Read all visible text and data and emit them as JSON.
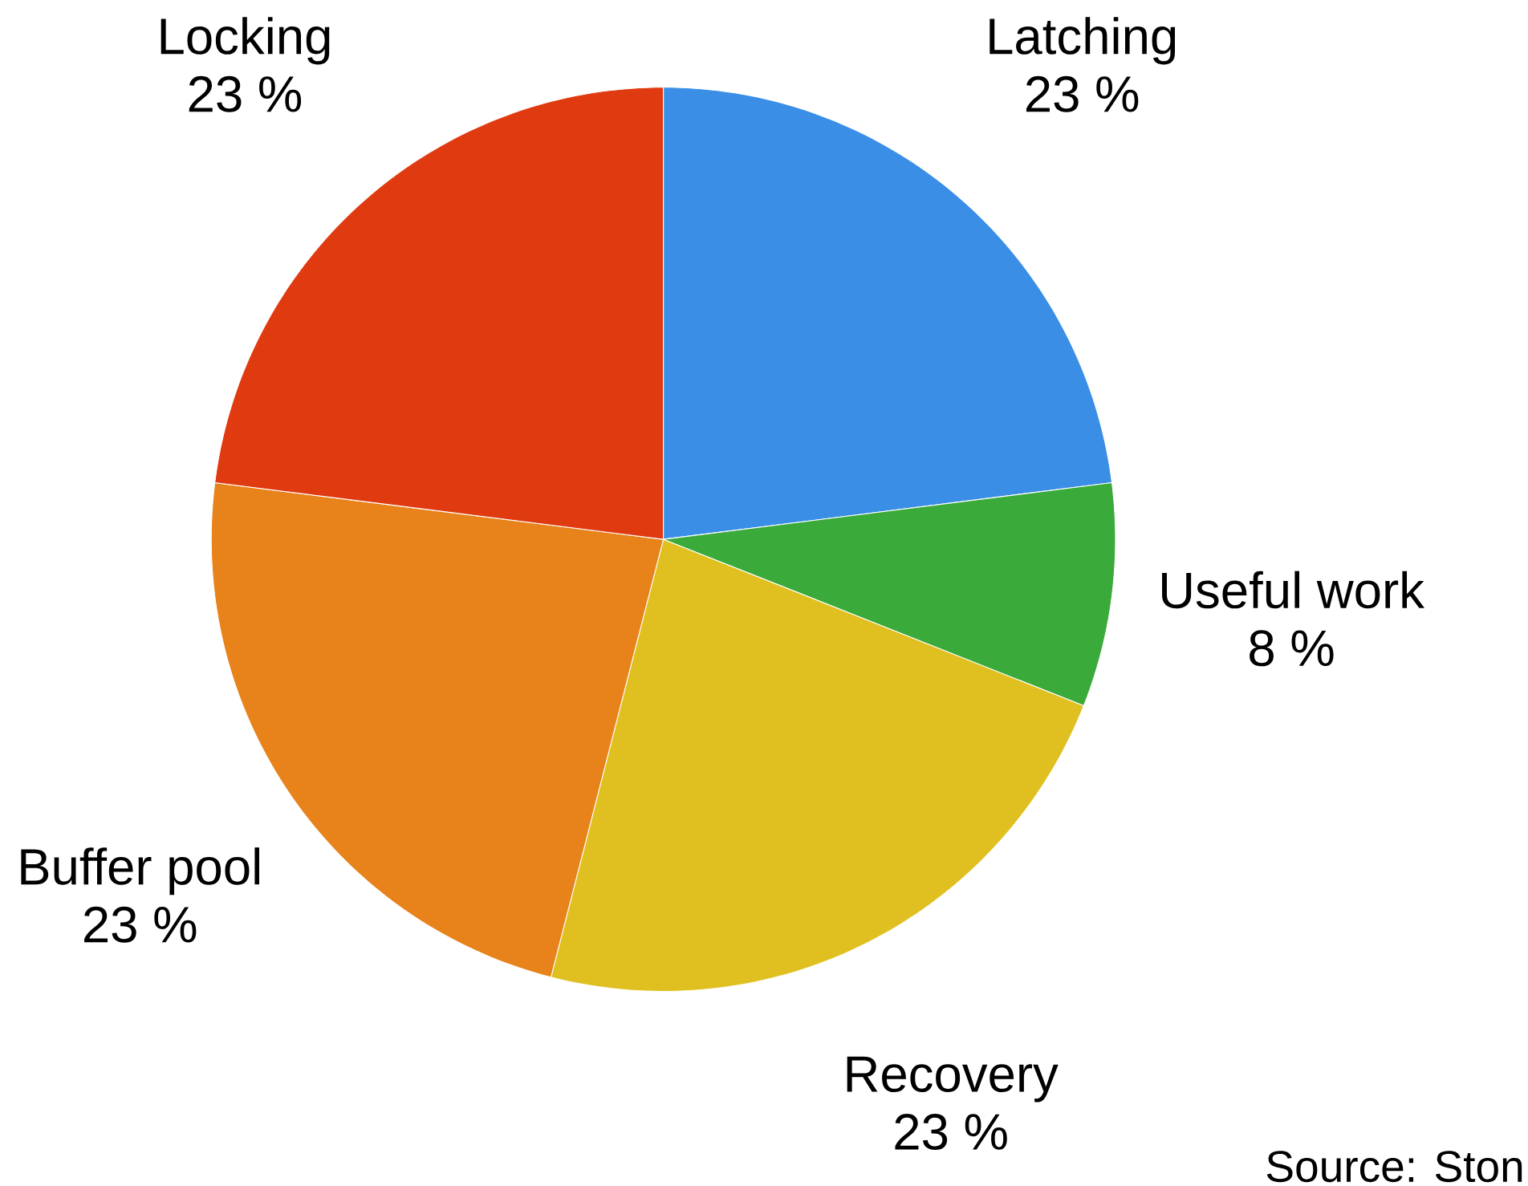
{
  "chart_data": {
    "type": "pie",
    "categories": [
      "Latching",
      "Useful work",
      "Recovery",
      "Buffer pool",
      "Locking"
    ],
    "values": [
      23,
      8,
      23,
      23,
      23
    ],
    "colors": [
      "#3a8ee6",
      "#3aaa3a",
      "#e0c020",
      "#e8821a",
      "#e03a10"
    ],
    "value_labels": [
      "23 %",
      "8 %",
      "23 %",
      "23 %",
      "23 %"
    ],
    "annotations": [
      "Source: Ston"
    ]
  }
}
